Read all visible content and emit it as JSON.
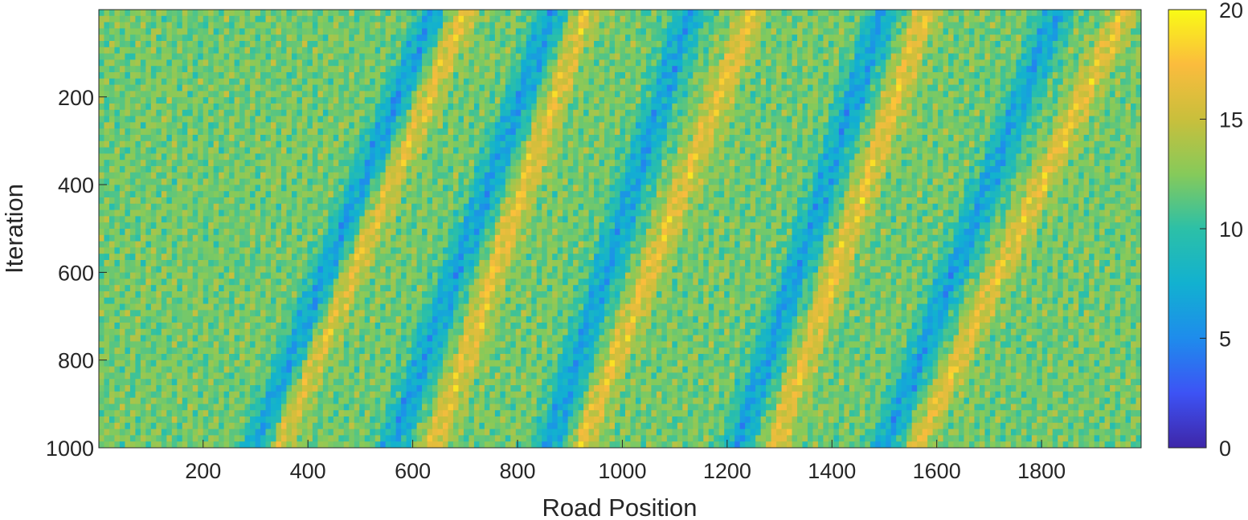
{
  "chart_data": {
    "type": "heatmap",
    "title": "",
    "xlabel": "Road Position",
    "ylabel": "Iteration",
    "xlim": [
      1,
      1990
    ],
    "ylim": [
      1,
      1000
    ],
    "x_ticks": [
      200,
      400,
      600,
      800,
      1000,
      1200,
      1400,
      1600,
      1800
    ],
    "y_ticks": [
      200,
      400,
      600,
      800,
      1000
    ],
    "y_direction": "reversed",
    "colorbar": {
      "min": 0,
      "max": 20,
      "ticks": [
        0,
        5,
        10,
        15,
        20
      ]
    },
    "colormap": "parula",
    "colormap_colors": [
      "#3e26a8",
      "#3d53f5",
      "#1e8cec",
      "#12b1d0",
      "#2cc0a7",
      "#86ca5a",
      "#c9bf3c",
      "#fbbc3d",
      "#f9fb15"
    ],
    "description_bands": {
      "low_value_waves": [
        {
          "x_at_iter_1": 640,
          "x_at_iter_1000": 300
        },
        {
          "x_at_iter_1": 870,
          "x_at_iter_1000": 560
        },
        {
          "x_at_iter_1": 1130,
          "x_at_iter_1000": 860
        },
        {
          "x_at_iter_1": 1500,
          "x_at_iter_1000": 1220
        },
        {
          "x_at_iter_1": 1830,
          "x_at_iter_1000": 1500
        }
      ],
      "high_value_waves": [
        {
          "x_at_iter_1": 700,
          "x_at_iter_1000": 340
        },
        {
          "x_at_iter_1": 930,
          "x_at_iter_1000": 640
        },
        {
          "x_at_iter_1": 1250,
          "x_at_iter_1000": 920
        },
        {
          "x_at_iter_1": 1580,
          "x_at_iter_1000": 1290
        },
        {
          "x_at_iter_1": 1960,
          "x_at_iter_1000": 1560
        }
      ],
      "background_value": 12
    }
  }
}
